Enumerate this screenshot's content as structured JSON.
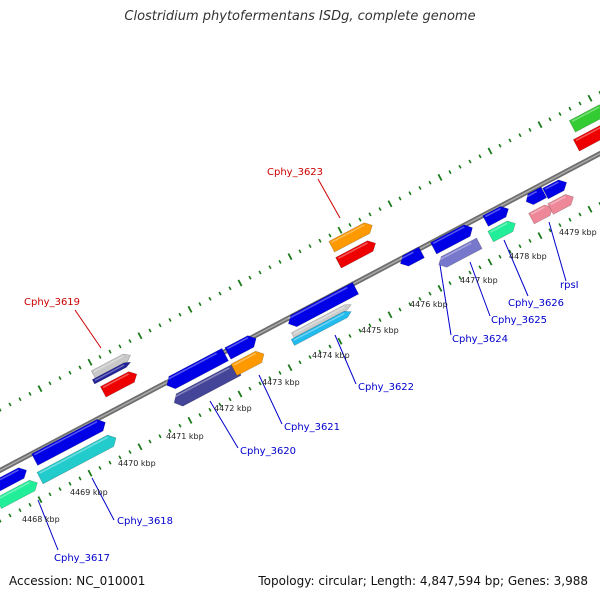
{
  "title": "Clostridium phytofermentans ISDg, complete genome",
  "footer": {
    "accession": "Accession: NC_010001",
    "topology": "Topology: circular; Length: 4,847,594 bp; Genes: 3,988"
  },
  "colors": {
    "backbone": "#888888",
    "tick": "#1a7a1a",
    "label_highlight": "#cc0000",
    "label_normal": "#0000cc"
  },
  "kbp_labels": [
    "4468 kbp",
    "4469 kbp",
    "4470 kbp",
    "4471 kbp",
    "4472 kbp",
    "4473 kbp",
    "4474 kbp",
    "4475 kbp",
    "4476 kbp",
    "4477 kbp",
    "4478 kbp",
    "4479 kbp"
  ],
  "gene_labels": [
    {
      "name": "Cphy_3617",
      "highlight": false
    },
    {
      "name": "Cphy_3618",
      "highlight": false
    },
    {
      "name": "Cphy_3619",
      "highlight": true
    },
    {
      "name": "Cphy_3620",
      "highlight": false
    },
    {
      "name": "Cphy_3621",
      "highlight": false
    },
    {
      "name": "Cphy_3622",
      "highlight": false
    },
    {
      "name": "Cphy_3623",
      "highlight": true
    },
    {
      "name": "Cphy_3624",
      "highlight": false
    },
    {
      "name": "Cphy_3625",
      "highlight": false
    },
    {
      "name": "Cphy_3626",
      "highlight": false
    },
    {
      "name": "rpsI",
      "highlight": false
    }
  ]
}
